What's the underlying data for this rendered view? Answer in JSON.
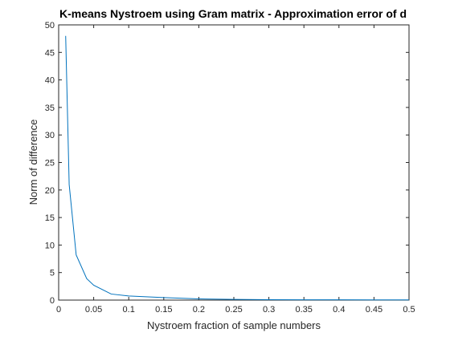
{
  "chart_data": {
    "type": "line",
    "title": "K-means Nystroem using Gram matrix - Approximation error of d",
    "xlabel": "Nystroem fraction of sample numbers",
    "ylabel": "Norm of difference",
    "xlim": [
      0,
      0.5
    ],
    "ylim": [
      0,
      50
    ],
    "xticks": [
      0,
      0.05,
      0.1,
      0.15,
      0.2,
      0.25,
      0.3,
      0.35,
      0.4,
      0.45,
      0.5
    ],
    "xtick_labels": [
      "0",
      "0.05",
      "0.1",
      "0.15",
      "0.2",
      "0.25",
      "0.3",
      "0.35",
      "0.4",
      "0.45",
      "0.5"
    ],
    "yticks": [
      0,
      5,
      10,
      15,
      20,
      25,
      30,
      35,
      40,
      45,
      50
    ],
    "ytick_labels": [
      "0",
      "5",
      "10",
      "15",
      "20",
      "25",
      "30",
      "35",
      "40",
      "45",
      "50"
    ],
    "grid": false,
    "series": [
      {
        "color": "#0072bd",
        "x": [
          0.01,
          0.015,
          0.025,
          0.04,
          0.05,
          0.075,
          0.1,
          0.15,
          0.2,
          0.25,
          0.3,
          0.35,
          0.4,
          0.45,
          0.5
        ],
        "y": [
          48,
          21,
          8.2,
          3.9,
          2.7,
          1.1,
          0.75,
          0.45,
          0.22,
          0.13,
          0.08,
          0.06,
          0.05,
          0.04,
          0.04
        ]
      }
    ]
  }
}
